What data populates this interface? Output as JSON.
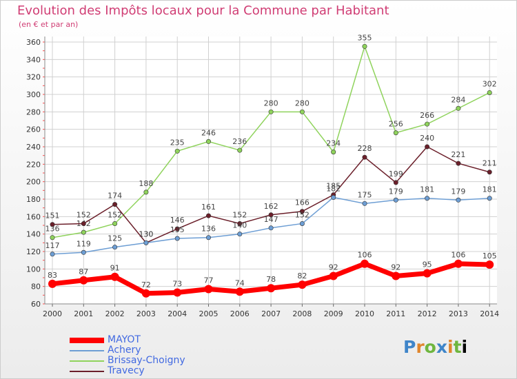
{
  "header": {
    "title": "Evolution des Impôts locaux pour la Commune par Habitant",
    "subtitle": "(en € et par an)"
  },
  "logo": {
    "text": "Proxiti"
  },
  "chart_data": {
    "type": "line",
    "title": "Evolution des Impôts locaux pour la Commune par Habitant",
    "subtitle": "(en € et par an)",
    "x": [
      "2000",
      "2001",
      "2002",
      "2003",
      "2004",
      "2005",
      "2006",
      "2007",
      "2008",
      "2009",
      "2010",
      "2011",
      "2012",
      "2013",
      "2014"
    ],
    "ylim": [
      60,
      360
    ],
    "yticks": [
      60,
      80,
      100,
      120,
      140,
      160,
      180,
      200,
      220,
      240,
      260,
      280,
      300,
      320,
      340,
      360
    ],
    "grid": true,
    "legend_position": "bottom-left",
    "series": [
      {
        "name": "MAYOT",
        "color": "#ff0000",
        "emphasis": true,
        "values": [
          83,
          87,
          91,
          72,
          73,
          77,
          74,
          78,
          82,
          92,
          106,
          92,
          95,
          106,
          105
        ]
      },
      {
        "name": "Achery",
        "color": "#6d9ed4",
        "values": [
          117,
          119,
          125,
          130,
          135,
          136,
          140,
          147,
          152,
          182,
          175,
          179,
          181,
          179,
          181
        ]
      },
      {
        "name": "Brissay-Choigny",
        "color": "#8fd35c",
        "values": [
          136,
          142,
          152,
          188,
          235,
          246,
          236,
          280,
          280,
          234,
          355,
          256,
          266,
          284,
          302
        ]
      },
      {
        "name": "Travecy",
        "color": "#6b1f2a",
        "values": [
          151,
          152,
          174,
          130,
          146,
          161,
          152,
          162,
          166,
          185,
          228,
          199,
          240,
          221,
          211
        ]
      }
    ]
  }
}
